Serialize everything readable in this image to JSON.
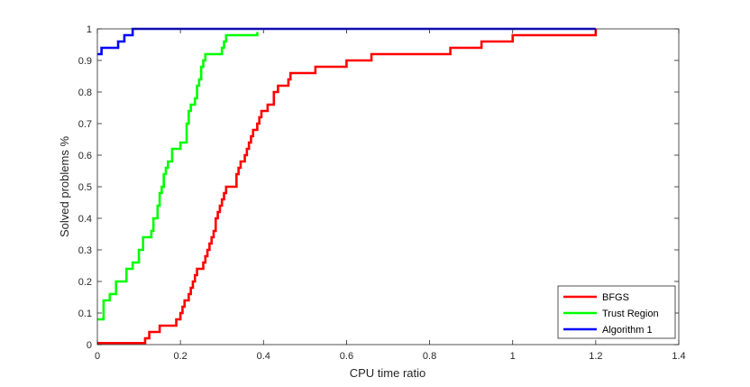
{
  "chart_data": {
    "type": "line",
    "title": "",
    "xlabel": "CPU time ratio",
    "ylabel": "Solved problems %",
    "xlim": [
      0,
      1.4
    ],
    "ylim": [
      0,
      1
    ],
    "x_ticks": [
      "0",
      "0.2",
      "0.4",
      "0.6",
      "0.8",
      "1",
      "1.2",
      "1.4"
    ],
    "y_ticks": [
      "0",
      "0.1",
      "0.2",
      "0.3",
      "0.4",
      "0.5",
      "0.6",
      "0.7",
      "0.8",
      "0.9",
      "1"
    ],
    "grid": false,
    "legend_position": "bottom-right",
    "series": [
      {
        "name": "BFGS",
        "color": "#ff0000",
        "step": true,
        "points": [
          [
            0,
            0.005
          ],
          [
            0.115,
            0.005
          ],
          [
            0.115,
            0.02
          ],
          [
            0.125,
            0.02
          ],
          [
            0.125,
            0.04
          ],
          [
            0.15,
            0.04
          ],
          [
            0.15,
            0.06
          ],
          [
            0.19,
            0.06
          ],
          [
            0.19,
            0.08
          ],
          [
            0.2,
            0.08
          ],
          [
            0.2,
            0.1
          ],
          [
            0.205,
            0.1
          ],
          [
            0.205,
            0.12
          ],
          [
            0.21,
            0.12
          ],
          [
            0.21,
            0.14
          ],
          [
            0.22,
            0.14
          ],
          [
            0.22,
            0.16
          ],
          [
            0.225,
            0.16
          ],
          [
            0.225,
            0.18
          ],
          [
            0.23,
            0.18
          ],
          [
            0.23,
            0.2
          ],
          [
            0.235,
            0.2
          ],
          [
            0.235,
            0.22
          ],
          [
            0.24,
            0.22
          ],
          [
            0.24,
            0.24
          ],
          [
            0.255,
            0.24
          ],
          [
            0.255,
            0.26
          ],
          [
            0.26,
            0.26
          ],
          [
            0.26,
            0.28
          ],
          [
            0.265,
            0.28
          ],
          [
            0.265,
            0.3
          ],
          [
            0.27,
            0.3
          ],
          [
            0.27,
            0.32
          ],
          [
            0.275,
            0.32
          ],
          [
            0.275,
            0.34
          ],
          [
            0.28,
            0.34
          ],
          [
            0.28,
            0.36
          ],
          [
            0.285,
            0.36
          ],
          [
            0.285,
            0.4
          ],
          [
            0.29,
            0.4
          ],
          [
            0.29,
            0.42
          ],
          [
            0.295,
            0.42
          ],
          [
            0.295,
            0.44
          ],
          [
            0.3,
            0.44
          ],
          [
            0.3,
            0.46
          ],
          [
            0.305,
            0.46
          ],
          [
            0.305,
            0.48
          ],
          [
            0.31,
            0.48
          ],
          [
            0.31,
            0.5
          ],
          [
            0.335,
            0.5
          ],
          [
            0.335,
            0.54
          ],
          [
            0.34,
            0.54
          ],
          [
            0.34,
            0.56
          ],
          [
            0.345,
            0.56
          ],
          [
            0.345,
            0.58
          ],
          [
            0.355,
            0.58
          ],
          [
            0.355,
            0.6
          ],
          [
            0.36,
            0.6
          ],
          [
            0.36,
            0.62
          ],
          [
            0.365,
            0.62
          ],
          [
            0.365,
            0.64
          ],
          [
            0.37,
            0.64
          ],
          [
            0.37,
            0.66
          ],
          [
            0.375,
            0.66
          ],
          [
            0.375,
            0.68
          ],
          [
            0.385,
            0.68
          ],
          [
            0.385,
            0.7
          ],
          [
            0.39,
            0.7
          ],
          [
            0.39,
            0.72
          ],
          [
            0.395,
            0.72
          ],
          [
            0.395,
            0.74
          ],
          [
            0.41,
            0.74
          ],
          [
            0.41,
            0.76
          ],
          [
            0.425,
            0.76
          ],
          [
            0.425,
            0.8
          ],
          [
            0.435,
            0.8
          ],
          [
            0.435,
            0.82
          ],
          [
            0.46,
            0.82
          ],
          [
            0.46,
            0.84
          ],
          [
            0.465,
            0.84
          ],
          [
            0.465,
            0.86
          ],
          [
            0.525,
            0.86
          ],
          [
            0.525,
            0.88
          ],
          [
            0.6,
            0.88
          ],
          [
            0.6,
            0.9
          ],
          [
            0.66,
            0.9
          ],
          [
            0.66,
            0.92
          ],
          [
            0.85,
            0.92
          ],
          [
            0.85,
            0.94
          ],
          [
            0.925,
            0.94
          ],
          [
            0.925,
            0.96
          ],
          [
            1.0,
            0.96
          ],
          [
            1.0,
            0.98
          ],
          [
            1.2,
            0.98
          ],
          [
            1.2,
            1.0
          ]
        ]
      },
      {
        "name": "Trust Region",
        "color": "#00ff00",
        "step": true,
        "points": [
          [
            0,
            0.08
          ],
          [
            0.015,
            0.08
          ],
          [
            0.015,
            0.14
          ],
          [
            0.03,
            0.14
          ],
          [
            0.03,
            0.16
          ],
          [
            0.045,
            0.16
          ],
          [
            0.045,
            0.2
          ],
          [
            0.07,
            0.2
          ],
          [
            0.07,
            0.24
          ],
          [
            0.085,
            0.24
          ],
          [
            0.085,
            0.26
          ],
          [
            0.1,
            0.26
          ],
          [
            0.1,
            0.3
          ],
          [
            0.11,
            0.3
          ],
          [
            0.11,
            0.34
          ],
          [
            0.13,
            0.34
          ],
          [
            0.13,
            0.36
          ],
          [
            0.135,
            0.36
          ],
          [
            0.135,
            0.4
          ],
          [
            0.145,
            0.4
          ],
          [
            0.145,
            0.44
          ],
          [
            0.15,
            0.44
          ],
          [
            0.15,
            0.48
          ],
          [
            0.155,
            0.48
          ],
          [
            0.155,
            0.5
          ],
          [
            0.16,
            0.5
          ],
          [
            0.16,
            0.54
          ],
          [
            0.165,
            0.54
          ],
          [
            0.165,
            0.56
          ],
          [
            0.17,
            0.56
          ],
          [
            0.17,
            0.58
          ],
          [
            0.18,
            0.58
          ],
          [
            0.18,
            0.62
          ],
          [
            0.2,
            0.62
          ],
          [
            0.2,
            0.64
          ],
          [
            0.215,
            0.64
          ],
          [
            0.215,
            0.7
          ],
          [
            0.22,
            0.7
          ],
          [
            0.22,
            0.74
          ],
          [
            0.225,
            0.74
          ],
          [
            0.225,
            0.76
          ],
          [
            0.235,
            0.76
          ],
          [
            0.235,
            0.78
          ],
          [
            0.24,
            0.78
          ],
          [
            0.24,
            0.82
          ],
          [
            0.245,
            0.82
          ],
          [
            0.245,
            0.84
          ],
          [
            0.25,
            0.84
          ],
          [
            0.25,
            0.88
          ],
          [
            0.255,
            0.88
          ],
          [
            0.255,
            0.9
          ],
          [
            0.26,
            0.9
          ],
          [
            0.26,
            0.92
          ],
          [
            0.3,
            0.92
          ],
          [
            0.3,
            0.94
          ],
          [
            0.305,
            0.94
          ],
          [
            0.305,
            0.96
          ],
          [
            0.31,
            0.96
          ],
          [
            0.31,
            0.98
          ],
          [
            0.385,
            0.98
          ],
          [
            0.385,
            0.99
          ]
        ]
      },
      {
        "name": "Algorithm 1",
        "color": "#0000ff",
        "step": true,
        "points": [
          [
            0,
            0.92
          ],
          [
            0.01,
            0.92
          ],
          [
            0.01,
            0.94
          ],
          [
            0.05,
            0.94
          ],
          [
            0.05,
            0.96
          ],
          [
            0.065,
            0.96
          ],
          [
            0.065,
            0.98
          ],
          [
            0.085,
            0.98
          ],
          [
            0.085,
            1.0
          ],
          [
            1.2,
            1.0
          ]
        ]
      }
    ]
  }
}
